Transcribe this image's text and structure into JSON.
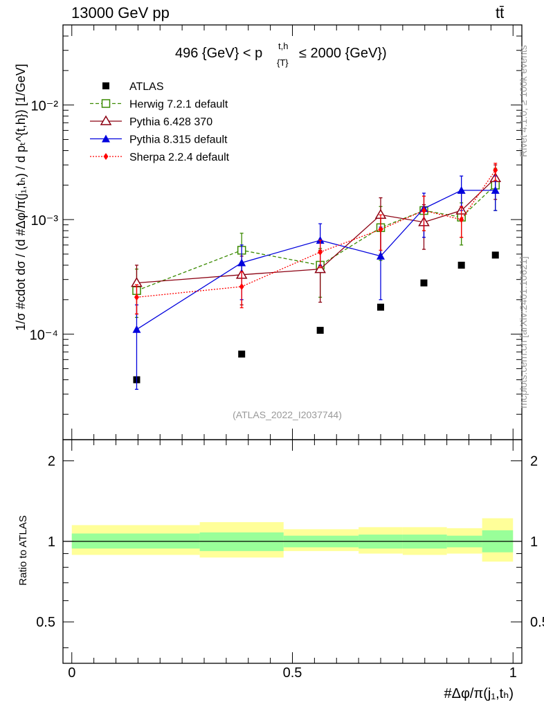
{
  "header": {
    "energy_label": "13000 GeV pp",
    "process_label": "tt̄",
    "cut_label": "496 {GeV} < p",
    "cut_sup": "t,h",
    "cut_sub": "{T}",
    "cut_suffix": "≤ 2000 {GeV})",
    "analysis_id": "(ATLAS_2022_I2037744)",
    "rivet_label": "Rivet 4.1.0, ≥ 100k events",
    "mcplots_label": "mcplots.cern.ch [arXiv:2401.10621]"
  },
  "axes": {
    "ylabel": "1/σ #cdot dσ / (d #Δφ/π(j₁,tₕ) / d pₜ^{t,h}) [1/GeV]",
    "xlabel": "#Δφ/π(j₁,tₕ)",
    "ratio_ylabel": "Ratio to ATLAS",
    "x_ticks": [
      "0",
      "0.5",
      "1"
    ],
    "y_ticks": [
      "10⁻⁴",
      "10⁻³",
      "10⁻²"
    ],
    "ratio_ticks": [
      "0.5",
      "1",
      "2"
    ]
  },
  "chart_data": {
    "type": "scatter",
    "title": "496 {GeV} < p_{T}^{t,h} ≤ 2000 {GeV})",
    "xlabel": "#Δφ/π(j1,th)",
    "ylabel": "1/σ #cdot dσ / (d #Δφ/π(j1,th) / d p_T^{t,h}) [1/GeV]",
    "xlim": [
      -0.02,
      1.02
    ],
    "ylim": [
      1.2e-05,
      0.05
    ],
    "yscale": "log",
    "legend_position": "top-left",
    "series": [
      {
        "name": "ATLAS",
        "color": "#000000",
        "marker": "square-filled",
        "style": "none",
        "x": [
          0.147,
          0.385,
          0.563,
          0.7,
          0.798,
          0.883,
          0.96
        ],
        "y": [
          4e-05,
          6.7e-05,
          0.000108,
          0.000172,
          0.00028,
          0.0004,
          0.00049
        ],
        "err_lo": [
          0,
          0,
          0,
          0,
          0,
          0,
          0
        ],
        "err_hi": [
          0,
          0,
          0,
          0,
          0,
          0,
          0
        ]
      },
      {
        "name": "Herwig 7.2.1 default",
        "color": "#3a8a00",
        "marker": "square-open",
        "style": "dashed",
        "x": [
          0.147,
          0.385,
          0.563,
          0.7,
          0.798,
          0.883,
          0.96
        ],
        "y": [
          0.00024,
          0.00054,
          0.0004,
          0.00085,
          0.0012,
          0.00105,
          0.002
        ],
        "err_lo": [
          0.0001,
          0.00021,
          0.00019,
          0.00041,
          0.0004,
          0.00045,
          0.0008
        ],
        "err_hi": [
          0.00013,
          0.00022,
          0.00016,
          0.00045,
          0.0004,
          0.00035,
          0.0008
        ]
      },
      {
        "name": "Pythia 6.428 370",
        "color": "#8b0011",
        "marker": "triangle-open",
        "style": "solid",
        "x": [
          0.147,
          0.385,
          0.563,
          0.7,
          0.798,
          0.883,
          0.96
        ],
        "y": [
          0.00028,
          0.00033,
          0.00037,
          0.0011,
          0.00095,
          0.0012,
          0.0023
        ],
        "err_lo": [
          0.00013,
          0.00015,
          0.00018,
          0.0006,
          0.0004,
          0.0005,
          0.0008
        ],
        "err_hi": [
          0.00012,
          0.00015,
          0.00017,
          0.00045,
          0.0004,
          0.0005,
          0.0007
        ]
      },
      {
        "name": "Pythia 8.315 default",
        "color": "#0000dd",
        "marker": "triangle-filled",
        "style": "solid",
        "x": [
          0.147,
          0.385,
          0.563,
          0.7,
          0.798,
          0.883,
          0.96
        ],
        "y": [
          0.00011,
          0.00042,
          0.00066,
          0.00048,
          0.00125,
          0.0018,
          0.0018
        ],
        "err_lo": [
          7.7e-05,
          0.00022,
          0.00026,
          0.00028,
          0.00055,
          0.0006,
          0.0006
        ],
        "err_hi": [
          7e-05,
          0.00018,
          0.00026,
          0.00038,
          0.00045,
          0.0006,
          0.0006
        ]
      },
      {
        "name": "Sherpa 2.2.4 default",
        "color": "#ff0000",
        "marker": "diamond-filled",
        "style": "dotted",
        "x": [
          0.147,
          0.385,
          0.563,
          0.7,
          0.798,
          0.883,
          0.96
        ],
        "y": [
          0.00021,
          0.00026,
          0.00052,
          0.00082,
          0.0012,
          0.001,
          0.0027
        ],
        "err_lo": [
          6e-05,
          9e-05,
          0.00014,
          0.00028,
          0.0004,
          0.0003,
          0.0005
        ],
        "err_hi": [
          6e-05,
          9e-05,
          0.00014,
          0.00028,
          0.0004,
          0.0003,
          0.0004
        ]
      }
    ],
    "ratio": {
      "ylabel": "Ratio to ATLAS",
      "ylim": [
        0.35,
        2.4
      ],
      "yscale": "log",
      "bins": [
        {
          "x_lo": 0.0,
          "x_hi": 0.29,
          "inner": [
            0.94,
            1.07
          ],
          "outer": [
            0.89,
            1.15
          ]
        },
        {
          "x_lo": 0.29,
          "x_hi": 0.48,
          "inner": [
            0.92,
            1.08
          ],
          "outer": [
            0.87,
            1.18
          ]
        },
        {
          "x_lo": 0.48,
          "x_hi": 0.65,
          "inner": [
            0.95,
            1.05
          ],
          "outer": [
            0.92,
            1.11
          ]
        },
        {
          "x_lo": 0.65,
          "x_hi": 0.75,
          "inner": [
            0.94,
            1.06
          ],
          "outer": [
            0.9,
            1.13
          ]
        },
        {
          "x_lo": 0.75,
          "x_hi": 0.85,
          "inner": [
            0.94,
            1.06
          ],
          "outer": [
            0.89,
            1.13
          ]
        },
        {
          "x_lo": 0.85,
          "x_hi": 0.93,
          "inner": [
            0.95,
            1.05
          ],
          "outer": [
            0.9,
            1.12
          ]
        },
        {
          "x_lo": 0.93,
          "x_hi": 1.0,
          "inner": [
            0.91,
            1.1
          ],
          "outer": [
            0.84,
            1.22
          ]
        }
      ]
    }
  },
  "colors": {
    "band_inner": "#99ff99",
    "band_outer": "#ffff99",
    "meta_text": "#999999"
  }
}
